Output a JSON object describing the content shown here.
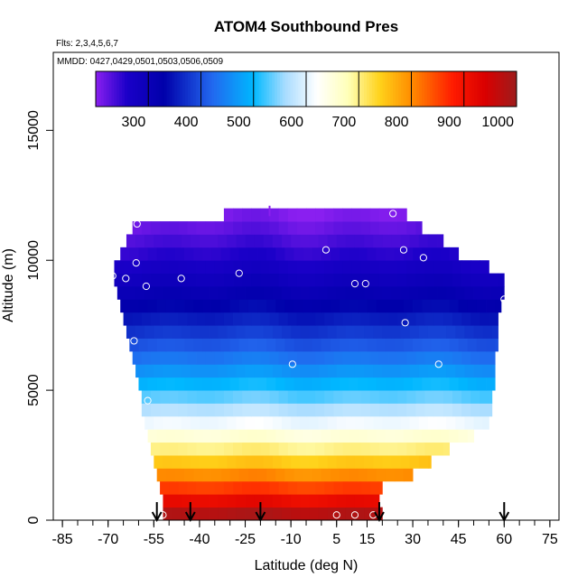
{
  "chart_data": {
    "type": "heatmap",
    "title": "ATOM4 Southbound Pres",
    "flights_note": "Flts: 2,3,4,5,6,7",
    "dates_note": "MMDD: 0427,0429,0501,0503,0506,0509",
    "xlabel": "Latitude (deg N)",
    "ylabel": "Altitude (m)",
    "xlim": [
      -88,
      78
    ],
    "ylim": [
      0,
      18000
    ],
    "x_ticks": [
      -85,
      -70,
      -55,
      -40,
      -25,
      -10,
      5,
      15,
      30,
      45,
      60,
      75
    ],
    "x_tick_labels": [
      "-85",
      "-70",
      "-55",
      "-40",
      "-25",
      "-10",
      "5",
      "15",
      "30",
      "45",
      "60",
      "75"
    ],
    "y_ticks": [
      0,
      5000,
      10000,
      15000
    ],
    "y_tick_labels": [
      "0",
      "5000",
      "10000",
      "15000"
    ],
    "colorbar": {
      "min": 200,
      "max": 1000,
      "ticks": [
        300,
        400,
        500,
        600,
        700,
        800,
        900,
        1000
      ],
      "tick_labels": [
        "300",
        "400",
        "500",
        "600",
        "700",
        "800",
        "900",
        "1000"
      ],
      "stops": [
        [
          200,
          "#8a1ff0"
        ],
        [
          260,
          "#1a00c8"
        ],
        [
          330,
          "#0000aa"
        ],
        [
          420,
          "#2266ee"
        ],
        [
          500,
          "#00b8ff"
        ],
        [
          560,
          "#a8dcff"
        ],
        [
          620,
          "#ffffff"
        ],
        [
          680,
          "#ffffb8"
        ],
        [
          740,
          "#ffd21a"
        ],
        [
          800,
          "#ff8c00"
        ],
        [
          880,
          "#ff1a00"
        ],
        [
          940,
          "#d90000"
        ],
        [
          1000,
          "#9e1c1c"
        ]
      ]
    },
    "rows": [
      {
        "z": 0,
        "lat_min": -52,
        "lat_max": 20
      },
      {
        "z": 500,
        "lat_min": -52,
        "lat_max": 19
      },
      {
        "z": 1000,
        "lat_min": -53,
        "lat_max": 20
      },
      {
        "z": 1500,
        "lat_min": -54,
        "lat_max": 30
      },
      {
        "z": 2000,
        "lat_min": -55,
        "lat_max": 36
      },
      {
        "z": 2500,
        "lat_min": -56,
        "lat_max": 42
      },
      {
        "z": 3000,
        "lat_min": -57,
        "lat_max": 50
      },
      {
        "z": 3500,
        "lat_min": -58,
        "lat_max": 55
      },
      {
        "z": 4000,
        "lat_min": -59,
        "lat_max": 56
      },
      {
        "z": 4500,
        "lat_min": -59,
        "lat_max": 56
      },
      {
        "z": 5000,
        "lat_min": -60,
        "lat_max": 57
      },
      {
        "z": 5500,
        "lat_min": -61,
        "lat_max": 57
      },
      {
        "z": 6000,
        "lat_min": -62,
        "lat_max": 57
      },
      {
        "z": 6500,
        "lat_min": -63,
        "lat_max": 58
      },
      {
        "z": 7000,
        "lat_min": -64,
        "lat_max": 58
      },
      {
        "z": 7500,
        "lat_min": -65,
        "lat_max": 58
      },
      {
        "z": 8000,
        "lat_min": -66,
        "lat_max": 59
      },
      {
        "z": 8500,
        "lat_min": -67,
        "lat_max": 60
      },
      {
        "z": 9000,
        "lat_min": -68,
        "lat_max": 60
      },
      {
        "z": 9500,
        "lat_min": -68,
        "lat_max": 55
      },
      {
        "z": 10000,
        "lat_min": -66,
        "lat_max": 45
      },
      {
        "z": 10500,
        "lat_min": -64,
        "lat_max": 40
      },
      {
        "z": 11000,
        "lat_min": -62,
        "lat_max": 33
      },
      {
        "z": 11500,
        "lat_min": -32,
        "lat_max": 28
      }
    ],
    "row_height": 500,
    "column_width": 3,
    "pressure_model": {
      "p0": 1013,
      "scale_height": 7400
    },
    "markers": [
      {
        "lat": -60.5,
        "alt": 11400
      },
      {
        "lat": -60.8,
        "alt": 9900
      },
      {
        "lat": -68.5,
        "alt": 9400
      },
      {
        "lat": -64.2,
        "alt": 9300
      },
      {
        "lat": -57.5,
        "alt": 9000
      },
      {
        "lat": -46,
        "alt": 9300
      },
      {
        "lat": -27,
        "alt": 9500
      },
      {
        "lat": 1.5,
        "alt": 10400
      },
      {
        "lat": 27,
        "alt": 10400
      },
      {
        "lat": 33.5,
        "alt": 10100
      },
      {
        "lat": 11,
        "alt": 9100
      },
      {
        "lat": 14.5,
        "alt": 9100
      },
      {
        "lat": 23.5,
        "alt": 11800
      },
      {
        "lat": 60,
        "alt": 8500
      },
      {
        "lat": 27.5,
        "alt": 7600
      },
      {
        "lat": -61.5,
        "alt": 6900
      },
      {
        "lat": -9.5,
        "alt": 6000
      },
      {
        "lat": 38.5,
        "alt": 6000
      },
      {
        "lat": -57,
        "alt": 4600
      },
      {
        "lat": 5,
        "alt": 200
      },
      {
        "lat": 11,
        "alt": 200
      },
      {
        "lat": 17,
        "alt": 200
      },
      {
        "lat": -52,
        "alt": 200
      }
    ],
    "arrows": [
      -54,
      -43,
      -20,
      19,
      60
    ],
    "top_tick_lat": -17
  }
}
